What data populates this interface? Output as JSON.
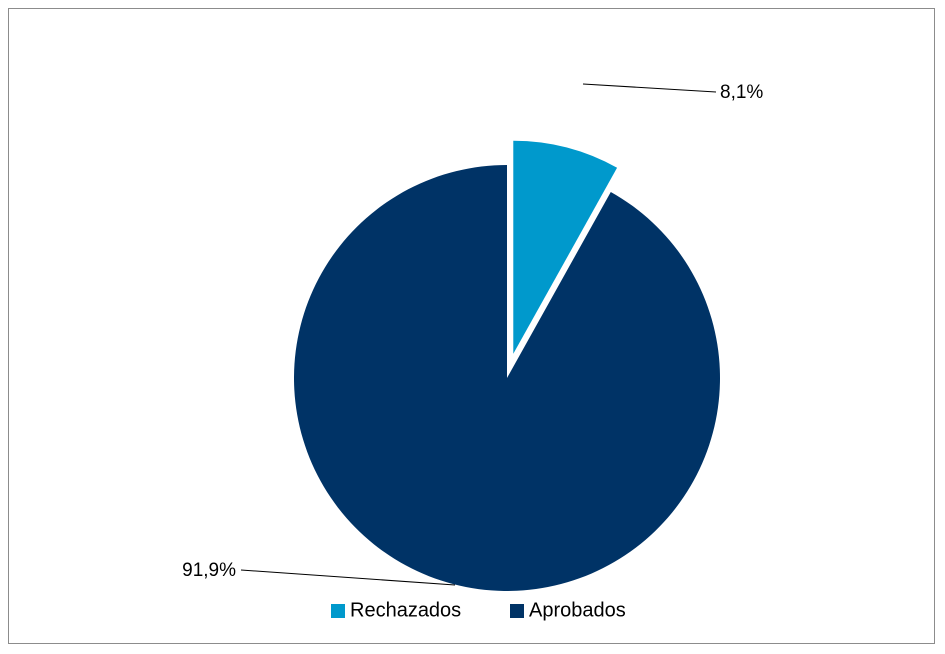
{
  "chart_data": {
    "type": "pie",
    "title": "",
    "categories": [
      "Rechazados",
      "Aprobados"
    ],
    "values": [
      8.1,
      91.9
    ],
    "unit": "%",
    "data_labels": [
      "8,1%",
      "91,9%"
    ],
    "colors": [
      "#0099cc",
      "#003366"
    ],
    "exploded": [
      "Rechazados"
    ],
    "start_angle": "12 o'clock, clockwise",
    "legend": {
      "position": "bottom",
      "entries": [
        "Rechazados",
        "Aprobados"
      ]
    }
  }
}
